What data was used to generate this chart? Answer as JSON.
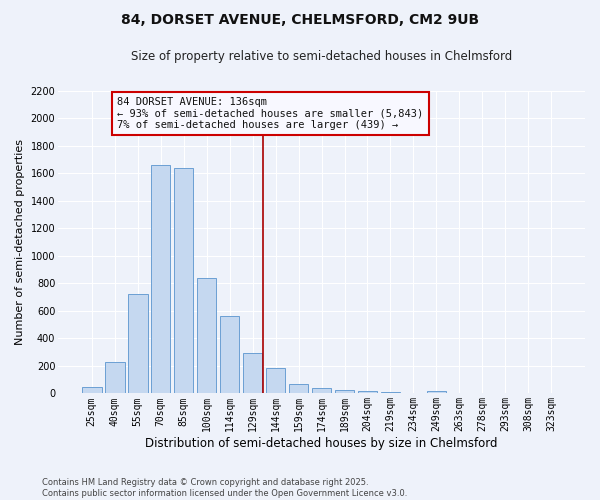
{
  "title": "84, DORSET AVENUE, CHELMSFORD, CM2 9UB",
  "subtitle": "Size of property relative to semi-detached houses in Chelmsford",
  "xlabel": "Distribution of semi-detached houses by size in Chelmsford",
  "ylabel": "Number of semi-detached properties",
  "bar_labels": [
    "25sqm",
    "40sqm",
    "55sqm",
    "70sqm",
    "85sqm",
    "100sqm",
    "114sqm",
    "129sqm",
    "144sqm",
    "159sqm",
    "174sqm",
    "189sqm",
    "204sqm",
    "219sqm",
    "234sqm",
    "249sqm",
    "263sqm",
    "278sqm",
    "293sqm",
    "308sqm",
    "323sqm"
  ],
  "bar_values": [
    50,
    225,
    720,
    1660,
    1640,
    840,
    560,
    295,
    185,
    70,
    38,
    22,
    18,
    12,
    0,
    18,
    0,
    0,
    0,
    0,
    0
  ],
  "bar_color": "#c5d8f0",
  "bar_edge_color": "#6b9fd4",
  "ylim": [
    0,
    2200
  ],
  "yticks": [
    0,
    200,
    400,
    600,
    800,
    1000,
    1200,
    1400,
    1600,
    1800,
    2000,
    2200
  ],
  "vline_color": "#aa0000",
  "vline_x_pos": 7.47,
  "annotation_title": "84 DORSET AVENUE: 136sqm",
  "annotation_line1": "← 93% of semi-detached houses are smaller (5,843)",
  "annotation_line2": "7% of semi-detached houses are larger (439) →",
  "annotation_box_edge_color": "#cc0000",
  "annotation_box_face_color": "#f8f8ff",
  "footnote1": "Contains HM Land Registry data © Crown copyright and database right 2025.",
  "footnote2": "Contains public sector information licensed under the Open Government Licence v3.0.",
  "bg_color": "#eef2fa",
  "grid_color": "#ffffff",
  "title_fontsize": 10,
  "subtitle_fontsize": 8.5,
  "xlabel_fontsize": 8.5,
  "ylabel_fontsize": 8,
  "tick_fontsize": 7,
  "annotation_fontsize": 7.5,
  "footnote_fontsize": 6
}
